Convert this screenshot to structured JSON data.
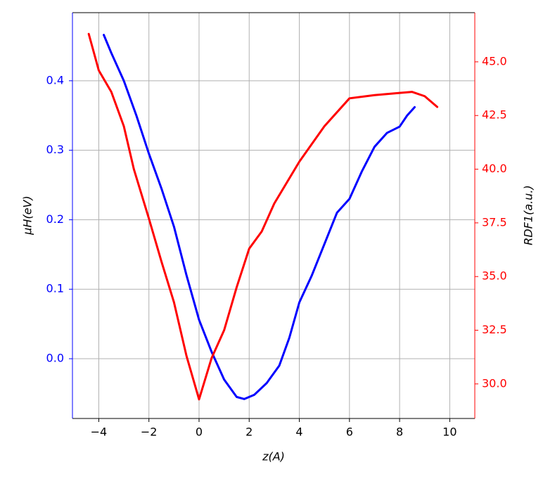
{
  "chart_data": {
    "type": "line",
    "xlabel": "z(A)",
    "ylabel": "μH(eV)",
    "y2label": "RDF1(a.u.)",
    "xlim": [
      -5.05,
      11.0
    ],
    "xticks": [
      {
        "value": -4,
        "label": "−4"
      },
      {
        "value": -2,
        "label": "−2"
      },
      0,
      2,
      4,
      6,
      8,
      10
    ],
    "ylim": [
      -0.086,
      0.498
    ],
    "yticks": [
      {
        "value": 0,
        "label": "0.0"
      },
      0.1,
      0.2,
      0.3,
      0.4
    ],
    "y2lim": [
      28.39,
      47.29
    ],
    "y2ticks": [
      {
        "value": 30,
        "label": "30.0"
      },
      32.5,
      {
        "value": 35,
        "label": "35.0"
      },
      37.5,
      {
        "value": 40,
        "label": "40.0"
      },
      42.5,
      {
        "value": 45,
        "label": "45.0"
      }
    ],
    "grid": true,
    "series": [
      {
        "color": "#0000ff",
        "axis": "y",
        "x": [
          -3.8,
          -3.5,
          -3,
          -2.5,
          -2,
          -1.5,
          -1,
          -0.5,
          0,
          0.5,
          1,
          1.5,
          1.8,
          2.2,
          2.7,
          3.2,
          3.6,
          4,
          4.5,
          5,
          5.5,
          6,
          6.5,
          7,
          7.5,
          8,
          8.3,
          8.6
        ],
        "values": [
          0.466,
          0.44,
          0.4,
          0.35,
          0.295,
          0.245,
          0.19,
          0.12,
          0.056,
          0.01,
          -0.03,
          -0.055,
          -0.058,
          -0.052,
          -0.035,
          -0.01,
          0.03,
          0.081,
          0.12,
          0.165,
          0.21,
          0.23,
          0.27,
          0.305,
          0.325,
          0.334,
          0.35,
          0.362
        ]
      },
      {
        "color": "#ff0000",
        "axis": "y2",
        "x": [
          -4.4,
          -4,
          -3.5,
          -3,
          -2.6,
          -2,
          -1.5,
          -1,
          -0.5,
          0,
          0.5,
          1,
          1.5,
          2,
          2.5,
          3,
          4,
          5,
          6,
          7,
          8,
          8.5,
          9,
          9.5
        ],
        "values": [
          46.3,
          44.6,
          43.6,
          42.0,
          40.0,
          37.7,
          35.7,
          33.8,
          31.3,
          29.28,
          31.2,
          32.5,
          34.5,
          36.3,
          37.1,
          38.4,
          40.35,
          42.0,
          43.3,
          43.45,
          43.55,
          43.6,
          43.4,
          42.9
        ]
      }
    ]
  }
}
